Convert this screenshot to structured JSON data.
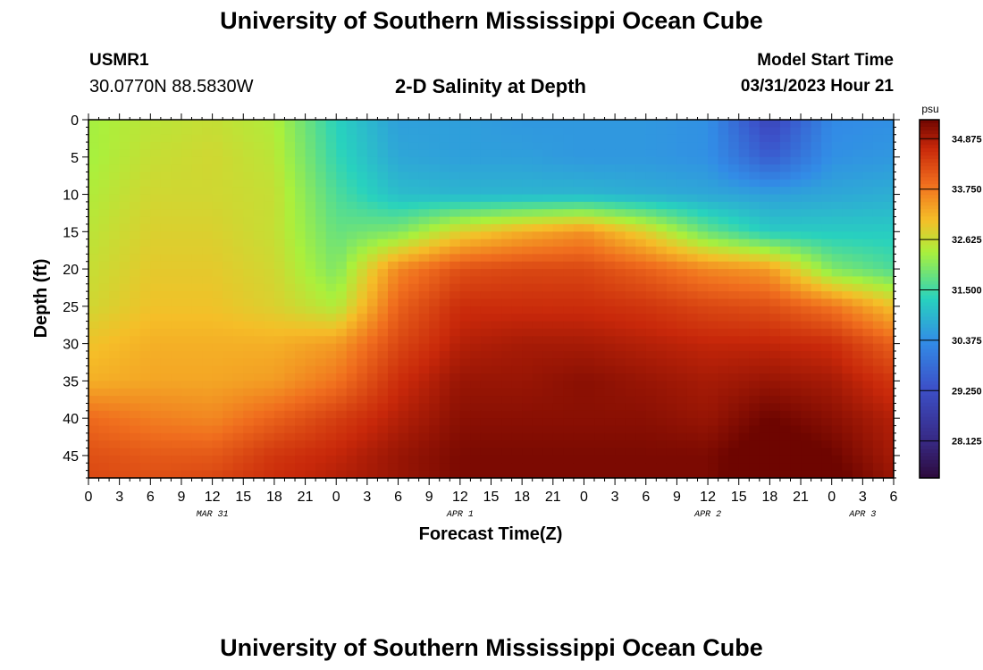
{
  "header": {
    "title": "University of Southern Mississippi Ocean Cube",
    "station_id": "USMR1",
    "coordinates": "30.0770N  88.5830W",
    "model_start_label": "Model Start Time",
    "model_start_value": "03/31/2023 Hour 21"
  },
  "footer": {
    "title": "University of Southern Mississippi Ocean Cube"
  },
  "chart_data": {
    "type": "heatmap",
    "title": "2-D Salinity at Depth",
    "xlabel": "Forecast Time(Z)",
    "ylabel": "Depth (ft)",
    "xlim_hours": [
      0,
      78
    ],
    "ylim": [
      0,
      48
    ],
    "y_ticks": [
      "0",
      "5",
      "10",
      "15",
      "20",
      "25",
      "30",
      "35",
      "40",
      "45"
    ],
    "x_ticks": [
      "0",
      "3",
      "6",
      "9",
      "12",
      "15",
      "18",
      "21",
      "0",
      "3",
      "6",
      "9",
      "12",
      "15",
      "18",
      "21",
      "0",
      "3",
      "6",
      "9",
      "12",
      "15",
      "18",
      "21",
      "0",
      "3",
      "6"
    ],
    "date_labels": [
      {
        "label": "MAR 31",
        "hour": 12
      },
      {
        "label": "APR 1",
        "hour": 36
      },
      {
        "label": "APR 2",
        "hour": 60
      },
      {
        "label": "APR 3",
        "hour": 75
      }
    ],
    "colorbar": {
      "unit": "psu",
      "min": 27.3,
      "max": 35.3,
      "ticks": [
        "34.875",
        "33.750",
        "32.625",
        "31.500",
        "30.375",
        "29.250",
        "28.125"
      ],
      "tick_values": [
        34.875,
        33.75,
        32.625,
        31.5,
        30.375,
        29.25,
        28.125
      ]
    },
    "depth_rows_ft": [
      0,
      5,
      10,
      15,
      20,
      25,
      30,
      35,
      40,
      45,
      48
    ],
    "time_cols_hours": [
      0,
      6,
      12,
      18,
      24,
      30,
      36,
      42,
      48,
      54,
      60,
      66,
      72,
      78
    ],
    "salinity_psu": [
      [
        32.3,
        32.5,
        32.6,
        32.4,
        31.3,
        30.6,
        30.6,
        30.5,
        30.5,
        30.5,
        30.4,
        29.0,
        30.3,
        30.4
      ],
      [
        32.3,
        32.6,
        32.7,
        32.5,
        31.4,
        30.7,
        30.6,
        30.6,
        30.5,
        30.5,
        30.4,
        29.5,
        30.4,
        30.5
      ],
      [
        32.4,
        32.7,
        32.7,
        32.6,
        31.6,
        31.0,
        30.9,
        30.9,
        30.9,
        30.8,
        30.7,
        30.6,
        30.7,
        30.8
      ],
      [
        32.5,
        32.8,
        32.8,
        32.6,
        31.8,
        32.0,
        32.8,
        33.2,
        33.5,
        32.8,
        31.8,
        31.2,
        31.2,
        31.2
      ],
      [
        32.6,
        32.9,
        32.9,
        32.7,
        32.0,
        33.6,
        34.2,
        34.3,
        34.3,
        34.0,
        33.6,
        33.4,
        32.0,
        31.6
      ],
      [
        32.7,
        33.0,
        33.0,
        32.8,
        32.4,
        34.0,
        34.6,
        34.6,
        34.6,
        34.5,
        34.3,
        34.2,
        33.8,
        33.0
      ],
      [
        33.0,
        33.2,
        33.2,
        33.2,
        33.4,
        34.3,
        34.8,
        34.9,
        34.9,
        34.8,
        34.7,
        34.7,
        34.6,
        34.0
      ],
      [
        33.2,
        33.3,
        33.3,
        33.4,
        33.8,
        34.6,
        35.0,
        35.0,
        35.1,
        35.0,
        34.9,
        35.0,
        34.9,
        34.5
      ],
      [
        33.9,
        33.7,
        33.6,
        34.0,
        34.4,
        34.8,
        35.1,
        35.1,
        35.1,
        35.1,
        35.0,
        35.3,
        35.1,
        34.8
      ],
      [
        34.2,
        34.1,
        34.1,
        34.5,
        34.7,
        35.0,
        35.2,
        35.2,
        35.2,
        35.2,
        35.2,
        35.5,
        35.3,
        34.9
      ],
      [
        34.3,
        34.2,
        34.3,
        34.6,
        34.8,
        35.0,
        35.2,
        35.2,
        35.2,
        35.2,
        35.2,
        35.6,
        35.4,
        35.0
      ]
    ]
  }
}
